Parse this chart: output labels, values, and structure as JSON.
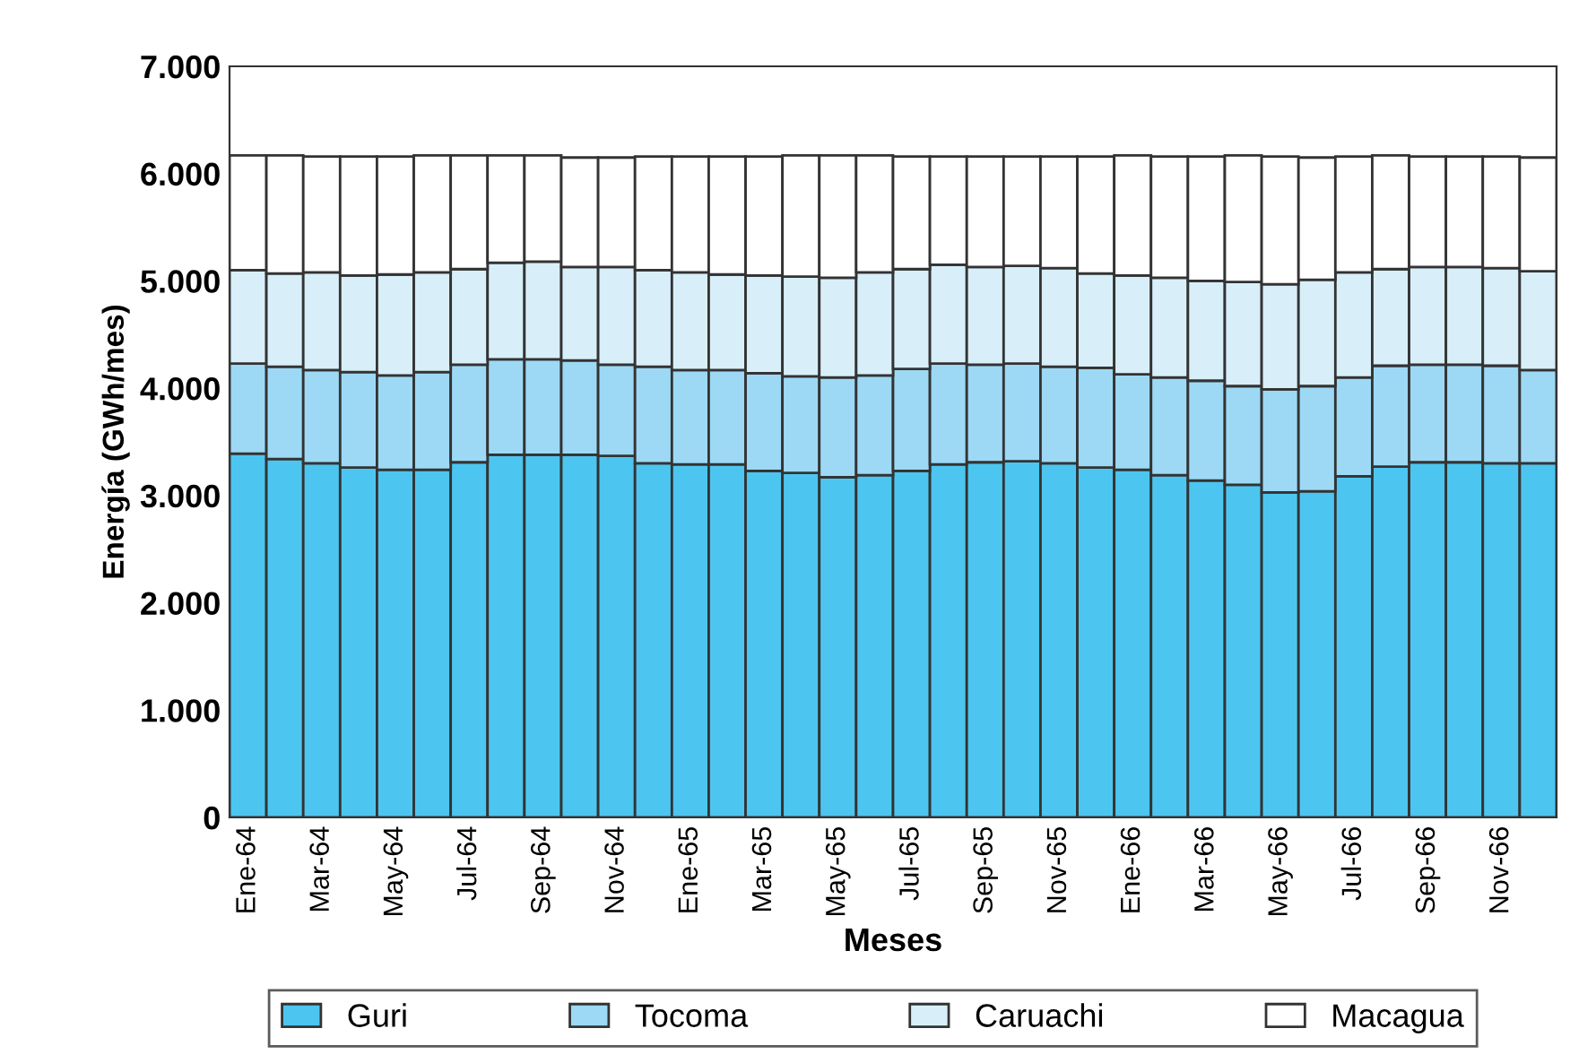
{
  "chart_data": {
    "type": "bar",
    "stacked": true,
    "xlabel": "Meses",
    "ylabel": "Energía (GWh/mes)",
    "categories": [
      "Ene-64",
      null,
      "Mar-64",
      null,
      "May-64",
      null,
      "Jul-64",
      null,
      "Sep-64",
      null,
      "Nov-64",
      null,
      "Ene-65",
      null,
      "Mar-65",
      null,
      "May-65",
      null,
      "Jul-65",
      null,
      "Sep-65",
      null,
      "Nov-65",
      null,
      "Ene-66",
      null,
      "Mar-66",
      null,
      "May-66",
      null,
      "Jul-66",
      null,
      "Sep-66",
      null,
      "Nov-66",
      null
    ],
    "series": [
      {
        "name": "Guri",
        "color": "#4cc6f0",
        "values": [
          3390,
          3340,
          3300,
          3260,
          3240,
          3240,
          3310,
          3380,
          3380,
          3380,
          3370,
          3300,
          3290,
          3290,
          3230,
          3210,
          3170,
          3190,
          3230,
          3290,
          3310,
          3320,
          3300,
          3260,
          3240,
          3190,
          3140,
          3100,
          3030,
          3040,
          3180,
          3270,
          3310,
          3310,
          3300,
          3300
        ]
      },
      {
        "name": "Tocoma",
        "color": "#9dd9f4",
        "values": [
          840,
          860,
          870,
          890,
          880,
          910,
          910,
          890,
          890,
          880,
          850,
          900,
          880,
          880,
          910,
          900,
          930,
          930,
          950,
          940,
          910,
          910,
          900,
          930,
          890,
          910,
          930,
          920,
          960,
          980,
          920,
          940,
          910,
          910,
          910,
          870
        ]
      },
      {
        "name": "Caruachi",
        "color": "#d8effa",
        "values": [
          870,
          870,
          910,
          900,
          940,
          930,
          890,
          900,
          910,
          870,
          910,
          900,
          910,
          890,
          910,
          930,
          930,
          960,
          930,
          920,
          910,
          910,
          920,
          880,
          920,
          930,
          930,
          970,
          980,
          990,
          980,
          900,
          910,
          910,
          910,
          920
        ]
      },
      {
        "name": "Macagua",
        "color": "#ffffff",
        "values": [
          1070,
          1100,
          1080,
          1110,
          1100,
          1090,
          1060,
          1000,
          990,
          1020,
          1020,
          1060,
          1080,
          1100,
          1110,
          1130,
          1140,
          1090,
          1050,
          1010,
          1030,
          1020,
          1040,
          1090,
          1120,
          1130,
          1160,
          1180,
          1190,
          1140,
          1080,
          1060,
          1030,
          1030,
          1040,
          1060
        ]
      }
    ],
    "ylim": [
      0,
      7000
    ],
    "yticks": [
      0,
      {
        "value": 1000,
        "label": "1.000"
      },
      {
        "value": 2000,
        "label": "2.000"
      },
      {
        "value": 3000,
        "label": "3.000"
      },
      {
        "value": 4000,
        "label": "4.000"
      },
      {
        "value": 5000,
        "label": "5.000"
      },
      {
        "value": 6000,
        "label": "6.000"
      },
      {
        "value": 7000,
        "label": "7.000"
      }
    ],
    "grid": false,
    "legend": "bottom"
  }
}
